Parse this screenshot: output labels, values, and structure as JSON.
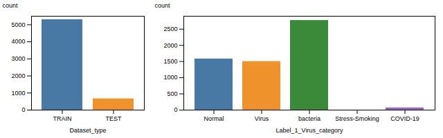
{
  "chart_data": [
    {
      "type": "bar",
      "categories": [
        "TRAIN",
        "TEST"
      ],
      "values": [
        5300,
        660
      ],
      "colors": [
        "#4878a4",
        "#f0922b"
      ],
      "xlabel": "Dataset_type",
      "ylabel": "count",
      "ylim": [
        0,
        5500
      ],
      "yticks": [
        0,
        1000,
        2000,
        3000,
        4000,
        5000
      ]
    },
    {
      "type": "bar",
      "categories": [
        "Normal",
        "Virus",
        "bacteria",
        "Stress-Smoking",
        "COVID-19"
      ],
      "values": [
        1580,
        1500,
        2770,
        0,
        70
      ],
      "colors": [
        "#4878a4",
        "#f0922b",
        "#3a8a3a",
        "#c0c0c0",
        "#9467bd"
      ],
      "xlabel": "Label_1_Virus_category",
      "ylabel": "count",
      "ylim": [
        0,
        2900
      ],
      "yticks": [
        0,
        500,
        1000,
        1500,
        2000,
        2500
      ]
    }
  ]
}
